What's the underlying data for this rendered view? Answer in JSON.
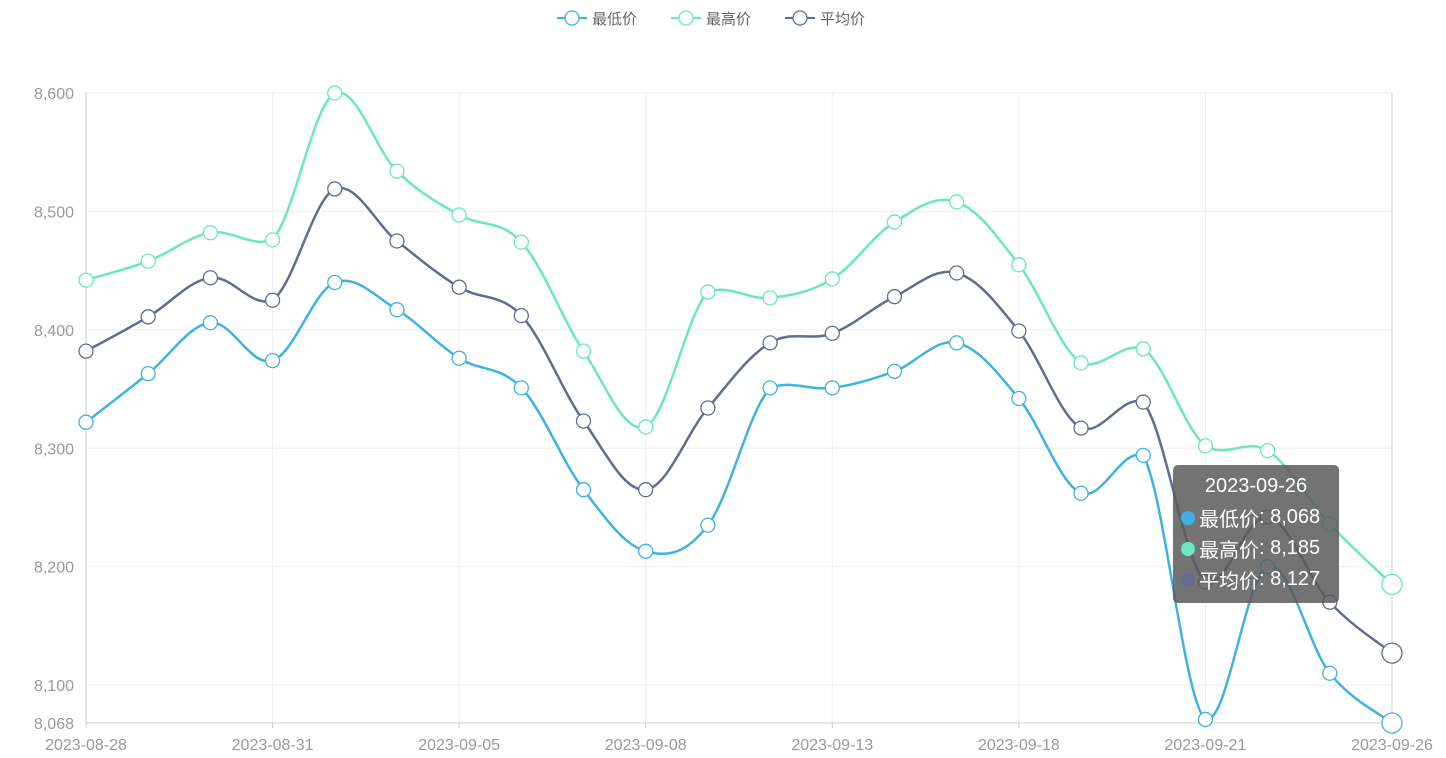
{
  "chart_data": {
    "type": "line",
    "smooth": true,
    "x": [
      "2023-08-28",
      "2023-08-29",
      "2023-08-30",
      "2023-08-31",
      "2023-09-01",
      "2023-09-04",
      "2023-09-05",
      "2023-09-06",
      "2023-09-07",
      "2023-09-08",
      "2023-09-11",
      "2023-09-12",
      "2023-09-13",
      "2023-09-14",
      "2023-09-15",
      "2023-09-18",
      "2023-09-19",
      "2023-09-20",
      "2023-09-21",
      "2023-09-22",
      "2023-09-25",
      "2023-09-26"
    ],
    "x_tick_labels": [
      "2023-08-28",
      "2023-08-31",
      "2023-09-05",
      "2023-09-08",
      "2023-09-13",
      "2023-09-18",
      "2023-09-21",
      "2023-09-26"
    ],
    "y_tick_labels": [
      "8,068",
      "8,100",
      "8,200",
      "8,300",
      "8,400",
      "8,500",
      "8,600"
    ],
    "ylim": [
      8068,
      8600
    ],
    "grid": true,
    "legend_position": "top-center",
    "series": [
      {
        "name": "最低价",
        "color": "#3fb1e3",
        "values": [
          8322,
          8363,
          8406,
          8374,
          8440,
          8417,
          8376,
          8351,
          8265,
          8213,
          8235,
          8351,
          8351,
          8365,
          8389,
          8342,
          8262,
          8294,
          8071,
          8200,
          8110,
          8068
        ]
      },
      {
        "name": "最高价",
        "color": "#6be6c1",
        "values": [
          8442,
          8458,
          8482,
          8476,
          8600,
          8534,
          8497,
          8474,
          8382,
          8318,
          8432,
          8427,
          8443,
          8491,
          8508,
          8455,
          8372,
          8384,
          8302,
          8298,
          8236,
          8185
        ]
      },
      {
        "name": "平均价",
        "color": "#626c91",
        "values": [
          8382,
          8411,
          8444,
          8425,
          8519,
          8475,
          8436,
          8412,
          8323,
          8265,
          8334,
          8389,
          8397,
          8428,
          8448,
          8399,
          8317,
          8339,
          8187,
          8242,
          8170,
          8127
        ]
      }
    ]
  },
  "tooltip": {
    "title": "2023-09-26",
    "rows": [
      {
        "name": "最低价",
        "value": "8,068",
        "color": "#3fb1e3"
      },
      {
        "name": "最高价",
        "value": "8,185",
        "color": "#6be6c1"
      },
      {
        "name": "平均价",
        "value": "8,127",
        "color": "#626c91"
      }
    ]
  }
}
